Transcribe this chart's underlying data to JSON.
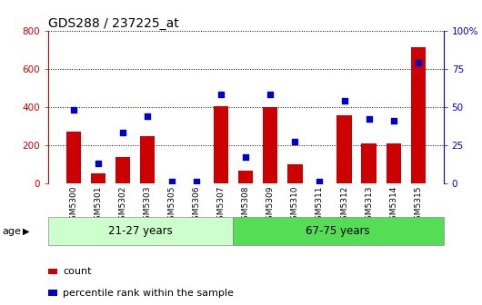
{
  "title": "GDS288 / 237225_at",
  "categories": [
    "GSM5300",
    "GSM5301",
    "GSM5302",
    "GSM5303",
    "GSM5305",
    "GSM5306",
    "GSM5307",
    "GSM5308",
    "GSM5309",
    "GSM5310",
    "GSM5311",
    "GSM5312",
    "GSM5313",
    "GSM5314",
    "GSM5315"
  ],
  "counts": [
    270,
    50,
    135,
    245,
    0,
    0,
    405,
    65,
    400,
    100,
    0,
    355,
    210,
    210,
    710
  ],
  "percentiles": [
    48,
    13,
    33,
    44,
    1,
    1,
    58,
    17,
    58,
    27,
    1,
    54,
    42,
    41,
    79
  ],
  "group1_label": "21-27 years",
  "group1_count": 7,
  "group2_label": "67-75 years",
  "group2_count": 8,
  "age_label": "age",
  "bar_color": "#cc0000",
  "dot_color": "#0000cc",
  "group1_color": "#ccffcc",
  "group2_color": "#55dd55",
  "ylim_left": [
    0,
    800
  ],
  "ylim_right": [
    0,
    100
  ],
  "yticks_left": [
    0,
    200,
    400,
    600,
    800
  ],
  "yticks_right": [
    0,
    25,
    50,
    75,
    100
  ],
  "legend_count": "count",
  "legend_percentile": "percentile rank within the sample",
  "background_color": "#ffffff",
  "title_color": "#000000",
  "left_axis_color": "#cc0000",
  "right_axis_color": "#0000cc",
  "grid_color": "#000000"
}
